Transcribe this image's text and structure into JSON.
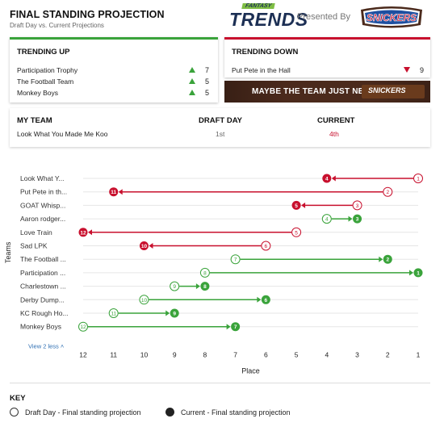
{
  "header": {
    "title": "FINAL STANDING PROJECTION",
    "subtitle": "Draft Day vs. Current Projections",
    "logo_top": "FANTASY",
    "logo_main": "TRENDS",
    "presented_by": "Presented By",
    "sponsor": "SNICKERS"
  },
  "trending_up": {
    "title": "TRENDING UP",
    "items": [
      {
        "team": "Participation Trophy",
        "change": "7"
      },
      {
        "team": "The Football Team",
        "change": "5"
      },
      {
        "team": "Monkey Boys",
        "change": "5"
      }
    ]
  },
  "trending_down": {
    "title": "TRENDING DOWN",
    "items": [
      {
        "team": "Put Pete in the Hall",
        "change": "9"
      }
    ]
  },
  "banner": {
    "text": "MAYBE THE TEAM JUST NEEDS A",
    "bar_label": "SNICKERS"
  },
  "my_team": {
    "col1_label": "MY TEAM",
    "col2_label": "DRAFT DAY",
    "col3_label": "CURRENT",
    "team": "Look What You Made Me Koo",
    "draft_day": "1st",
    "current": "4th"
  },
  "colors": {
    "up": "#3aa33b",
    "down": "#c8102e",
    "gray_line": "#e6e6e6"
  },
  "chart_data": {
    "type": "dumbbell",
    "ylabel": "Teams",
    "xlabel": "Place",
    "x_ticks": [
      "12",
      "11",
      "10",
      "9",
      "8",
      "7",
      "6",
      "5",
      "4",
      "3",
      "2",
      "1"
    ],
    "xlim": [
      12,
      1
    ],
    "view_link": "View 2 less",
    "teams": [
      {
        "label": "Look What Y...",
        "draft": 1,
        "current": 4
      },
      {
        "label": "Put Pete in th...",
        "draft": 2,
        "current": 11
      },
      {
        "label": "GOAT Whisp...",
        "draft": 3,
        "current": 5
      },
      {
        "label": "Aaron rodger...",
        "draft": 4,
        "current": 3
      },
      {
        "label": "Love Train",
        "draft": 5,
        "current": 12
      },
      {
        "label": "Sad LPK",
        "draft": 6,
        "current": 10
      },
      {
        "label": "The Football ...",
        "draft": 7,
        "current": 2
      },
      {
        "label": "Participation ...",
        "draft": 8,
        "current": 1
      },
      {
        "label": "Charlestown ...",
        "draft": 9,
        "current": 8
      },
      {
        "label": "Derby Dump...",
        "draft": 10,
        "current": 6
      },
      {
        "label": "KC Rough Ho...",
        "draft": 11,
        "current": 9
      },
      {
        "label": "Monkey Boys",
        "draft": 12,
        "current": 7
      }
    ]
  },
  "key": {
    "title": "KEY",
    "draft_label": "Draft Day - Final standing projection",
    "current_label": "Current - Final standing projection"
  }
}
